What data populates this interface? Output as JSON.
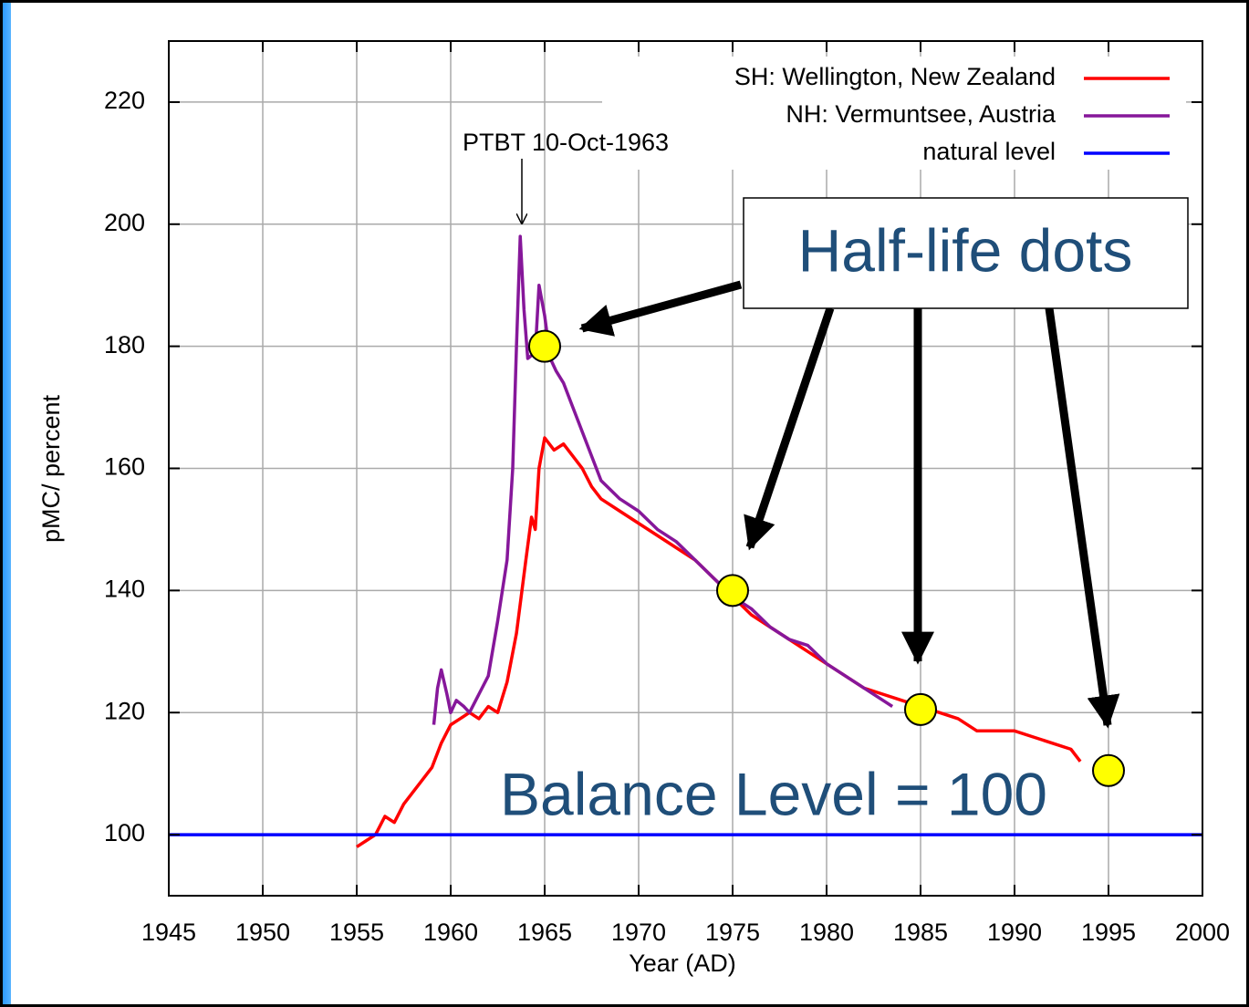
{
  "chart_data": {
    "type": "line",
    "xlabel": "Year (AD)",
    "ylabel": "pMC/ percent",
    "xlim": [
      1945,
      2000
    ],
    "xticks": [
      1945,
      1950,
      1955,
      1960,
      1965,
      1970,
      1975,
      1980,
      1985,
      1990,
      1995,
      2000
    ],
    "ylim": [
      90,
      230
    ],
    "yticks": [
      100,
      120,
      140,
      160,
      180,
      200,
      220
    ],
    "grid": true,
    "legend": "upper right",
    "series": [
      {
        "name": "SH: Wellington, New Zealand",
        "color": "#ff0000",
        "x": [
          1955,
          1955.5,
          1956,
          1956.5,
          1957,
          1957.5,
          1958,
          1958.5,
          1959,
          1959.5,
          1960,
          1960.5,
          1961,
          1961.5,
          1962,
          1962.5,
          1963,
          1963.5,
          1964,
          1964.3,
          1964.5,
          1964.7,
          1965,
          1965.5,
          1966,
          1966.5,
          1967,
          1967.5,
          1968,
          1969,
          1970,
          1971,
          1972,
          1973,
          1974,
          1975,
          1976,
          1977,
          1978,
          1979,
          1980,
          1981,
          1982,
          1983,
          1984,
          1985,
          1986,
          1987,
          1988,
          1989,
          1990,
          1991,
          1992,
          1993,
          1993.5
        ],
        "values": [
          98,
          99,
          100,
          103,
          102,
          105,
          107,
          109,
          111,
          115,
          118,
          119,
          120,
          119,
          121,
          120,
          125,
          133,
          145,
          152,
          150,
          160,
          165,
          163,
          164,
          162,
          160,
          157,
          155,
          153,
          151,
          149,
          147,
          145,
          142,
          139,
          136,
          134,
          132,
          130,
          128,
          126,
          124,
          123,
          122,
          121,
          120,
          119,
          117,
          117,
          117,
          116,
          115,
          114,
          112
        ]
      },
      {
        "name": "NH: Vermuntsee, Austria",
        "color": "#86179a",
        "x": [
          1959.1,
          1959.3,
          1959.5,
          1959.8,
          1960,
          1960.3,
          1960.7,
          1961,
          1961.5,
          1962,
          1962.5,
          1962.8,
          1963,
          1963.3,
          1963.5,
          1963.7,
          1963.9,
          1964.1,
          1964.5,
          1964.7,
          1965,
          1965.3,
          1965.6,
          1966,
          1966.5,
          1967,
          1967.5,
          1968,
          1969,
          1970,
          1971,
          1972,
          1973,
          1974,
          1975,
          1976,
          1977,
          1978,
          1979,
          1980,
          1981,
          1982,
          1983,
          1983.5
        ],
        "values": [
          118,
          124,
          127,
          123,
          120,
          122,
          121,
          120,
          123,
          126,
          135,
          141,
          145,
          160,
          180,
          198,
          186,
          178,
          179,
          190,
          185,
          178,
          176,
          174,
          170,
          166,
          162,
          158,
          155,
          153,
          150,
          148,
          145,
          142,
          139,
          137,
          134,
          132,
          131,
          128,
          126,
          124,
          122,
          121
        ]
      },
      {
        "name": "natural level",
        "color": "#0000ff",
        "x": [
          1945,
          2000
        ],
        "values": [
          100,
          100
        ]
      }
    ],
    "annotations": [
      {
        "text": "PTBT 10-Oct-1963"
      },
      {
        "text": "Balance Level = 100"
      }
    ],
    "half_life_dots": {
      "label": "Half-life dots",
      "color": "#ffff00",
      "x": [
        1965,
        1975,
        1985,
        1995
      ],
      "values": [
        180,
        140,
        120.5,
        110.5
      ]
    }
  }
}
